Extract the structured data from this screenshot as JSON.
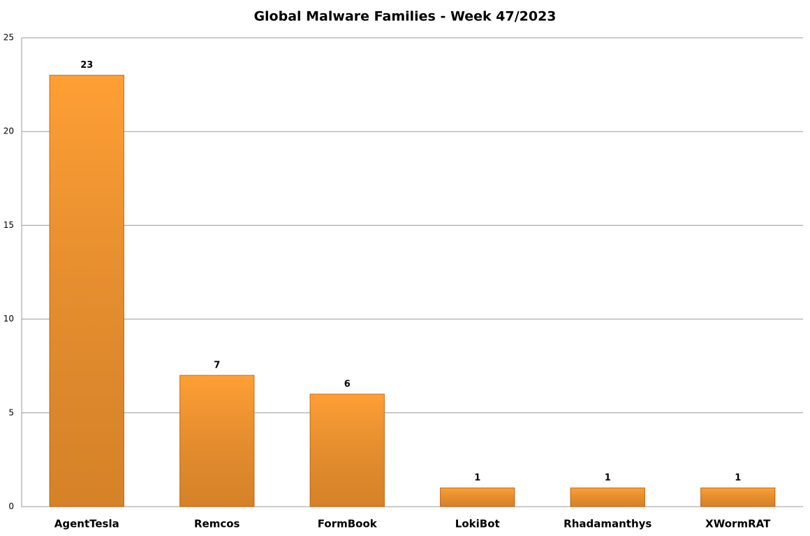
{
  "chart_data": {
    "type": "bar",
    "title": "Global Malware Families - Week 47/2023",
    "categories": [
      "AgentTesla",
      "Remcos",
      "FormBook",
      "LokiBot",
      "Rhadamanthys",
      "XWormRAT"
    ],
    "values": [
      23,
      7,
      6,
      1,
      1,
      1
    ],
    "color": "#ff9f35",
    "ylim": [
      0,
      25
    ],
    "yticks": [
      0,
      5,
      10,
      15,
      20,
      25
    ],
    "grid": true
  }
}
